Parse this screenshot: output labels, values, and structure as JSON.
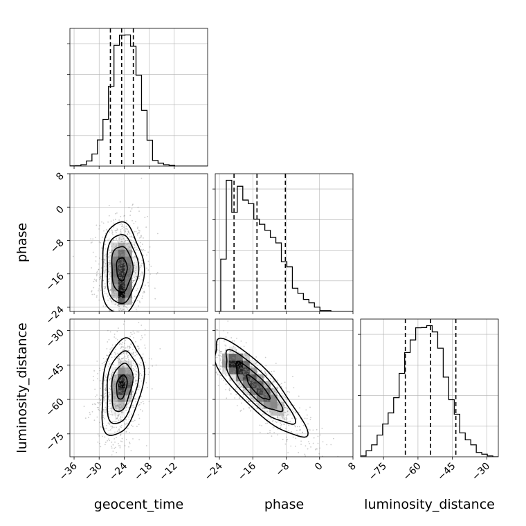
{
  "chart_data": {
    "type": "corner",
    "parameters": [
      "geocent_time",
      "phase",
      "luminosity_distance"
    ],
    "axis_labels": {
      "x": [
        "geocent_time",
        "phase",
        "luminosity_distance"
      ],
      "y": [
        "phase",
        "luminosity_distance"
      ]
    },
    "ranges": {
      "geocent_time": [
        -37,
        -4
      ],
      "phase": [
        -25,
        8
      ],
      "luminosity_distance": [
        -85,
        -25
      ]
    },
    "ticks": {
      "geocent_time": [
        -36,
        -30,
        -24,
        -18,
        -12
      ],
      "phase": [
        -24,
        -16,
        -8,
        0,
        8
      ],
      "luminosity_distance": [
        -75,
        -60,
        -45,
        -30
      ]
    },
    "tick_labels": {
      "geocent_time": [
        "−36",
        "−30",
        "−24",
        "−18",
        "−12"
      ],
      "phase": [
        "−24",
        "−16",
        "−8",
        "0",
        "8"
      ],
      "luminosity_distance": [
        "−75",
        "−60",
        "−45",
        "−30"
      ]
    },
    "quantiles": {
      "geocent_time": [
        -27.3,
        -24.6,
        -21.8
      ],
      "phase": [
        -20.5,
        -15.0,
        -8.2
      ],
      "luminosity_distance": [
        -65.5,
        -54.5,
        -43.5
      ]
    },
    "histograms": {
      "geocent_time": {
        "bin_edges": [
          -37,
          -35.68,
          -34.36,
          -33.04,
          -31.72,
          -30.4,
          -29.08,
          -27.76,
          -26.44,
          -25.12,
          -23.8,
          -22.48,
          -21.16,
          -19.84,
          -18.52,
          -17.2,
          -15.88,
          -14.56,
          -13.24,
          -11.92,
          -10.6,
          -9.28,
          -7.96,
          -6.64,
          -5.32,
          -4
        ],
        "counts": [
          0.2,
          0.3,
          1.0,
          3.7,
          8.8,
          19.0,
          33.9,
          57.9,
          87.7,
          95.0,
          95.2,
          87.0,
          66.0,
          40.5,
          18.8,
          4.1,
          2.1,
          1.0,
          0.6,
          0,
          0,
          0,
          0,
          0,
          0
        ]
      },
      "phase": {
        "bin_edges": [
          -25,
          -23.68,
          -22.36,
          -21.04,
          -19.72,
          -18.4,
          -17.08,
          -15.76,
          -14.44,
          -13.12,
          -11.8,
          -10.48,
          -9.16,
          -7.84,
          -6.52,
          -5.2,
          -3.88,
          -2.56,
          -1.24,
          0.08,
          1.4,
          2.72,
          4.04,
          5.36,
          6.68,
          8
        ],
        "counts": [
          0,
          36.5,
          91.5,
          69.1,
          87.3,
          77.7,
          75.2,
          64.4,
          60.8,
          56.6,
          51.6,
          47.8,
          34.7,
          31.1,
          16.2,
          12.6,
          8.4,
          6.0,
          3.0,
          0.6,
          0.6,
          0,
          0,
          0,
          0
        ]
      },
      "luminosity_distance": {
        "bin_edges": [
          -85,
          -82.6,
          -80.2,
          -77.8,
          -75.4,
          -73,
          -70.6,
          -68.2,
          -65.8,
          -63.4,
          -61,
          -58.6,
          -56.2,
          -53.8,
          -51.4,
          -49,
          -46.6,
          -44.2,
          -41.8,
          -39.4,
          -37,
          -34.6,
          -32.2,
          -29.8,
          -27.4,
          -25
        ],
        "counts": [
          0.4,
          2.8,
          5.5,
          10.0,
          15.1,
          20.2,
          27.2,
          38.4,
          48.0,
          53.8,
          59.4,
          59.5,
          60.4,
          57.5,
          50.0,
          36.7,
          26.3,
          19.6,
          11.0,
          7.8,
          5.5,
          2.0,
          1.2,
          0.4,
          0
        ]
      }
    },
    "pair_plots": [
      {
        "x": "geocent_time",
        "y": "phase",
        "mean": [
          -24.6,
          -14.8
        ],
        "sigma": [
          2.5,
          5.5
        ],
        "correlation": 0.0,
        "mode": [
          -24.2,
          -21.3
        ],
        "contour_levels": 4
      },
      {
        "x": "geocent_time",
        "y": "luminosity_distance",
        "mean": [
          -24.6,
          -54.5
        ],
        "sigma": [
          2.5,
          10.5
        ],
        "correlation": 0.3,
        "mode": [
          -24.0,
          -53.0
        ],
        "contour_levels": 4
      },
      {
        "x": "phase",
        "y": "luminosity_distance",
        "mean": [
          -14.8,
          -55.0
        ],
        "sigma": [
          5.5,
          10.5
        ],
        "correlation": -0.85,
        "mode": [
          -20.0,
          -44.0
        ],
        "contour_levels": 4
      }
    ],
    "grid": true,
    "colors": {
      "line": "#000000",
      "grid": "#b0b0b0",
      "points": "#8c8c8c",
      "hist2d_dark": "#000000"
    }
  }
}
